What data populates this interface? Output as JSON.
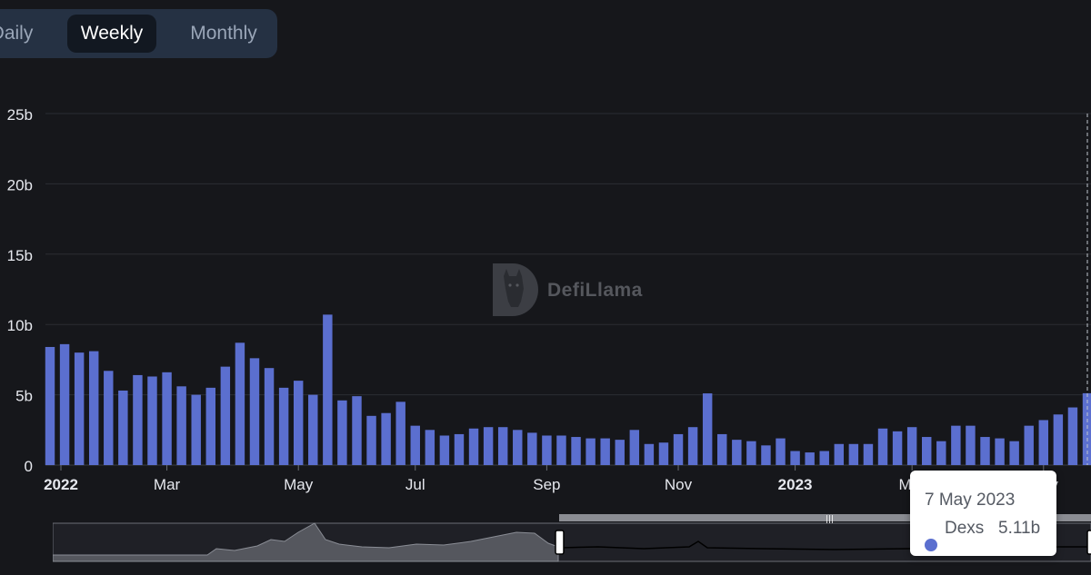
{
  "range_toggle": {
    "options": [
      "Daily",
      "Weekly",
      "Monthly"
    ],
    "selected": "Weekly"
  },
  "watermark": {
    "text": "DefiLlama"
  },
  "tooltip": {
    "date": "7 May 2023",
    "series_name": "Dexs",
    "value_text": "5.11b"
  },
  "colors": {
    "bar": "#5b6fcf",
    "background": "#16171b",
    "grid": "#2b2d33",
    "toggle_bg": "#253143"
  },
  "chart_data": {
    "type": "bar",
    "title": "",
    "xlabel": "",
    "ylabel": "",
    "ylim": [
      0,
      25
    ],
    "y_unit": "billions",
    "y_ticks": [
      "0",
      "5b",
      "10b",
      "15b",
      "20b",
      "25b"
    ],
    "x_tick_labels": [
      "2022",
      "Mar",
      "May",
      "Jul",
      "Sep",
      "Nov",
      "2023",
      "Mar",
      "May"
    ],
    "grid": true,
    "series": [
      {
        "name": "Dexs",
        "values": [
          8.4,
          8.6,
          8.0,
          8.1,
          6.7,
          5.3,
          6.4,
          6.3,
          6.6,
          5.6,
          5.0,
          5.5,
          7.0,
          8.7,
          7.6,
          6.9,
          5.5,
          6.0,
          5.0,
          10.7,
          4.6,
          4.9,
          3.5,
          3.7,
          4.5,
          2.8,
          2.5,
          2.1,
          2.2,
          2.6,
          2.7,
          2.7,
          2.5,
          2.3,
          2.1,
          2.1,
          2.0,
          1.9,
          1.9,
          1.8,
          2.5,
          1.5,
          1.6,
          2.2,
          2.7,
          5.1,
          2.2,
          1.8,
          1.7,
          1.4,
          1.9,
          1.0,
          0.9,
          1.0,
          1.5,
          1.5,
          1.5,
          2.6,
          2.4,
          2.7,
          2.0,
          1.7,
          2.8,
          2.8,
          2.0,
          1.9,
          1.7,
          2.8,
          3.2,
          3.6,
          4.1,
          5.11
        ]
      }
    ]
  }
}
